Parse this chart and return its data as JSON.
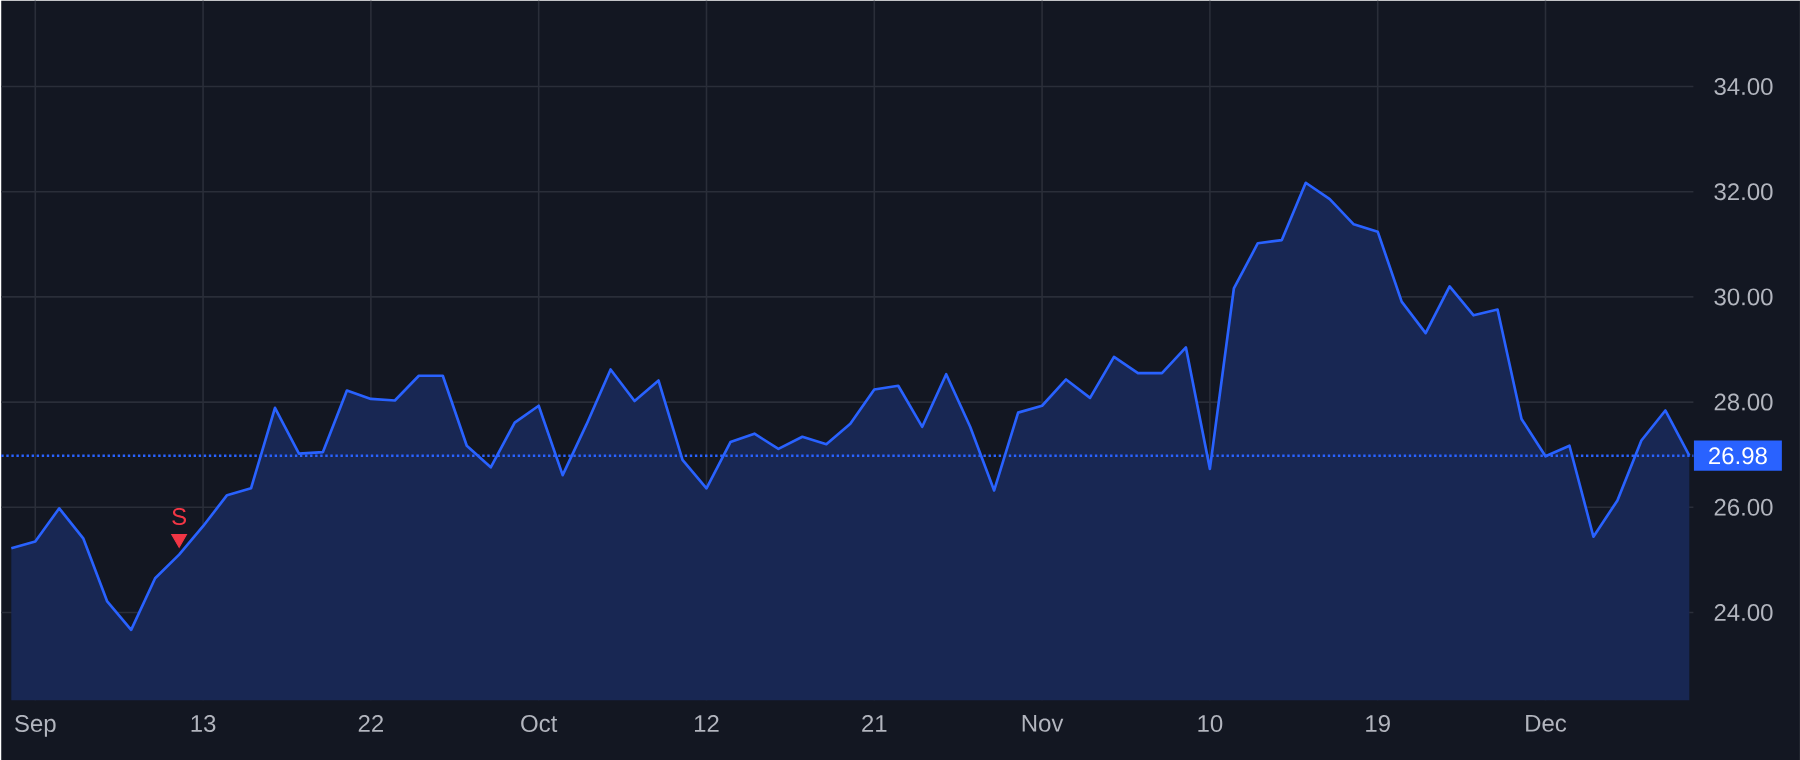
{
  "chart_data": {
    "type": "area",
    "categories": [
      null,
      "Sep",
      null,
      null,
      null,
      null,
      null,
      null,
      "13",
      null,
      null,
      null,
      null,
      null,
      null,
      "22",
      null,
      null,
      null,
      null,
      null,
      null,
      "Oct",
      null,
      null,
      null,
      null,
      null,
      null,
      "12",
      null,
      null,
      null,
      null,
      null,
      null,
      "21",
      null,
      null,
      null,
      null,
      null,
      null,
      "Nov",
      null,
      null,
      null,
      null,
      null,
      null,
      "10",
      null,
      null,
      null,
      null,
      null,
      null,
      "19",
      null,
      null,
      null,
      null,
      null,
      null,
      "Dec",
      null,
      null,
      null,
      null,
      null,
      null
    ],
    "series": [
      {
        "color": "#2962ff",
        "values": [
          25.22,
          25.35,
          25.98,
          25.41,
          24.21,
          23.67,
          24.65,
          25.1,
          25.64,
          26.23,
          26.36,
          27.89,
          27.02,
          27.05,
          28.22,
          28.06,
          28.03,
          28.5,
          28.5,
          27.17,
          26.76,
          27.61,
          27.93,
          26.61,
          27.58,
          28.62,
          28.02,
          28.41,
          26.9,
          26.36,
          27.24,
          27.4,
          27.11,
          27.34,
          27.2,
          27.59,
          28.24,
          28.31,
          27.53,
          28.53,
          27.53,
          26.32,
          27.8,
          27.93,
          28.43,
          28.08,
          28.86,
          28.55,
          28.55,
          29.04,
          26.73,
          30.16,
          31.02,
          31.08,
          32.17,
          31.86,
          31.38,
          31.24,
          29.91,
          29.31,
          30.2,
          29.65,
          29.76,
          27.68,
          26.97,
          27.17,
          25.44,
          26.13,
          27.27,
          27.84,
          26.98
        ]
      },
      {
        "name": "S",
        "type": "scatter",
        "marker": "triangle",
        "color": "#f23645",
        "values": [
          null,
          null,
          null,
          null,
          null,
          null,
          null,
          25.4,
          null,
          null,
          null,
          null,
          null,
          null,
          null,
          null,
          null,
          null,
          null,
          null,
          null,
          null,
          null,
          null,
          null,
          null,
          null,
          null,
          null,
          null,
          null,
          null,
          null,
          null,
          null,
          null,
          null,
          null,
          null,
          null,
          null,
          null,
          null,
          null,
          null,
          null,
          null,
          null,
          null,
          null,
          null,
          null,
          null,
          null,
          null,
          null,
          null,
          null,
          null,
          null,
          null,
          null,
          null,
          null,
          null,
          null,
          null,
          null,
          null,
          null,
          null
        ]
      }
    ],
    "ylim": [
      22.33,
      35.63
    ],
    "yticks": [
      {
        "value": 24,
        "label": "24.00"
      },
      {
        "value": 26,
        "label": "26.00"
      },
      {
        "value": 28,
        "label": "28.00"
      },
      {
        "value": 30,
        "label": "30.00"
      },
      {
        "value": 32,
        "label": "32.00"
      },
      {
        "value": 34,
        "label": "34.00"
      }
    ],
    "grid": true,
    "ref_lines": [
      {
        "axis": "y",
        "value": 26.98,
        "label": "26.98",
        "color": "#2962ff",
        "line_style": "dotted"
      }
    ]
  }
}
